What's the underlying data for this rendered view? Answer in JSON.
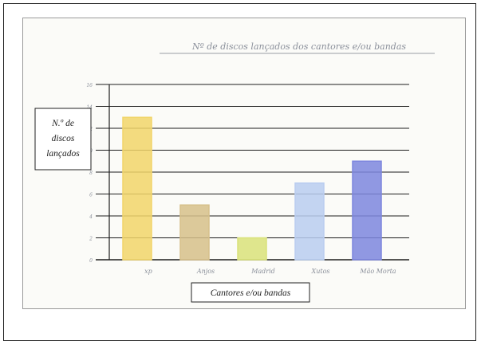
{
  "chart_data": {
    "type": "bar",
    "title": "Nº de discos lançados dos cantores e/ou bandas",
    "ylabel": "N.º de discos lançados",
    "xlabel": "Cantores e/ou bandas",
    "ylim": [
      0,
      16
    ],
    "yticks": [
      0,
      2,
      4,
      6,
      8,
      10,
      12,
      14,
      16
    ],
    "grid": true,
    "categories": [
      "xp",
      "Anjos",
      "Madrid",
      "Xutos",
      "Mão Morta"
    ],
    "values": [
      13,
      5,
      2,
      7,
      9
    ],
    "colors": [
      "#f1d56a",
      "#d6c08a",
      "#d9e27a",
      "#b9cdf0",
      "#7d86de"
    ]
  }
}
